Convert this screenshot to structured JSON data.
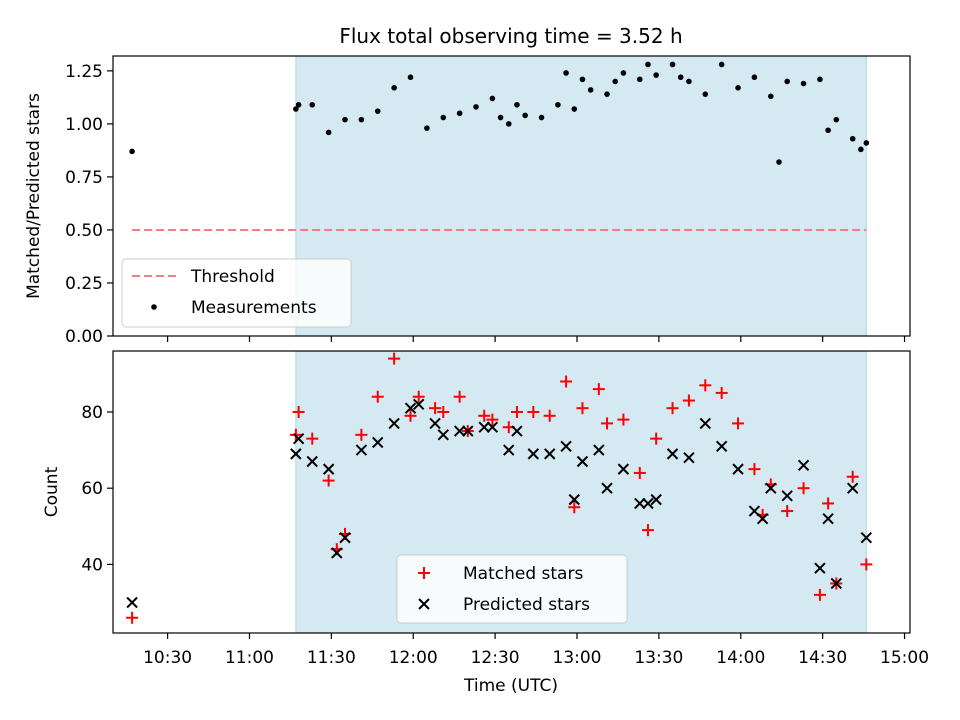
{
  "chart_data": [
    {
      "type": "scatter",
      "title": "Flux total observing time = 3.52 h",
      "xlabel": "",
      "ylabel": "Matched/Predicted stars",
      "ylim": [
        0.0,
        1.32
      ],
      "y_ticks": [
        "0.00",
        "0.25",
        "0.50",
        "0.75",
        "1.00",
        "1.25"
      ],
      "shaded_span": {
        "start": "11:17",
        "end": "14:46",
        "color": "#d4e9f1"
      },
      "threshold": {
        "name": "Threshold",
        "value": 0.5,
        "x_start": "10:17",
        "x_end": "14:46",
        "color": "#f08080"
      },
      "legend": {
        "placement": "lower-left",
        "entries": [
          "Threshold",
          "Measurements"
        ]
      },
      "series": [
        {
          "name": "Measurements",
          "marker": "dot",
          "color": "#000000",
          "x": [
            "10:17",
            "11:17",
            "11:18",
            "11:23",
            "11:29",
            "11:35",
            "11:41",
            "11:47",
            "11:53",
            "11:59",
            "12:05",
            "12:11",
            "12:17",
            "12:23",
            "12:29",
            "12:35",
            "12:41",
            "12:47",
            "12:53",
            "12:59",
            "13:05",
            "13:11",
            "13:17",
            "13:23",
            "13:29",
            "13:35",
            "13:41",
            "13:47",
            "13:53",
            "13:59",
            "14:05",
            "14:11",
            "14:17",
            "14:23",
            "14:29",
            "14:35",
            "14:41",
            "14:46",
            "13:02",
            "13:14",
            "13:26",
            "13:38",
            "12:38",
            "12:56",
            "14:14",
            "14:32",
            "14:44",
            "12:32"
          ],
          "y": [
            0.87,
            1.07,
            1.09,
            1.09,
            0.96,
            1.02,
            1.02,
            1.06,
            1.17,
            1.22,
            0.98,
            1.03,
            1.05,
            1.08,
            1.12,
            1.0,
            1.04,
            1.03,
            1.09,
            1.07,
            1.16,
            1.14,
            1.24,
            1.21,
            1.23,
            1.28,
            1.2,
            1.14,
            1.28,
            1.17,
            1.22,
            1.13,
            1.2,
            1.19,
            1.21,
            1.02,
            0.93,
            0.91,
            1.21,
            1.2,
            1.28,
            1.22,
            1.09,
            1.24,
            0.82,
            0.97,
            0.88,
            1.03
          ]
        }
      ]
    },
    {
      "type": "scatter",
      "title": "",
      "xlabel": "Time (UTC)",
      "ylabel": "Count",
      "ylim": [
        22,
        96
      ],
      "y_ticks": [
        "40",
        "60",
        "80"
      ],
      "xlim": [
        "10:10",
        "15:02"
      ],
      "x_ticks": [
        "10:30",
        "11:00",
        "11:30",
        "12:00",
        "12:30",
        "13:00",
        "13:30",
        "14:00",
        "14:30",
        "15:00"
      ],
      "shaded_span": {
        "start": "11:17",
        "end": "14:46",
        "color": "#d4e9f1"
      },
      "legend": {
        "placement": "lower-center",
        "entries": [
          "Matched stars",
          "Predicted stars"
        ]
      },
      "series": [
        {
          "name": "Matched stars",
          "marker": "plus",
          "color": "#ff0000",
          "x": [
            "10:17",
            "11:17",
            "11:18",
            "11:23",
            "11:29",
            "11:32",
            "11:35",
            "11:41",
            "11:47",
            "11:53",
            "11:59",
            "12:02",
            "12:08",
            "12:11",
            "12:17",
            "12:20",
            "12:26",
            "12:29",
            "12:35",
            "12:38",
            "12:44",
            "12:50",
            "12:56",
            "13:02",
            "13:08",
            "13:11",
            "13:17",
            "13:23",
            "13:29",
            "13:35",
            "13:41",
            "13:47",
            "13:53",
            "13:59",
            "14:05",
            "14:11",
            "14:17",
            "14:23",
            "14:29",
            "14:35",
            "14:41",
            "14:46",
            "12:59",
            "13:26",
            "14:08",
            "14:32"
          ],
          "y": [
            26,
            74,
            80,
            73,
            62,
            44,
            48,
            74,
            84,
            94,
            79,
            84,
            81,
            80,
            84,
            75,
            79,
            78,
            76,
            80,
            80,
            79,
            88,
            81,
            86,
            77,
            78,
            64,
            73,
            81,
            83,
            87,
            85,
            77,
            65,
            61,
            54,
            60,
            32,
            35,
            63,
            40,
            55,
            49,
            53,
            56
          ]
        },
        {
          "name": "Predicted stars",
          "marker": "x",
          "color": "#000000",
          "x": [
            "10:17",
            "11:17",
            "11:18",
            "11:23",
            "11:29",
            "11:32",
            "11:35",
            "11:41",
            "11:47",
            "11:53",
            "11:59",
            "12:02",
            "12:08",
            "12:11",
            "12:17",
            "12:20",
            "12:26",
            "12:29",
            "12:35",
            "12:38",
            "12:44",
            "12:50",
            "12:56",
            "13:02",
            "13:08",
            "13:11",
            "13:17",
            "13:23",
            "13:29",
            "13:35",
            "13:41",
            "13:47",
            "13:53",
            "13:59",
            "14:05",
            "14:11",
            "14:17",
            "14:23",
            "14:29",
            "14:35",
            "14:41",
            "14:46",
            "12:59",
            "13:26",
            "14:08",
            "14:32"
          ],
          "y": [
            30,
            69,
            73,
            67,
            65,
            43,
            47,
            70,
            72,
            77,
            81,
            82,
            77,
            74,
            75,
            75,
            76,
            76,
            70,
            75,
            69,
            69,
            71,
            67,
            70,
            60,
            65,
            56,
            57,
            69,
            68,
            77,
            71,
            65,
            54,
            60,
            58,
            66,
            39,
            35,
            60,
            47,
            57,
            56,
            52,
            52
          ]
        }
      ]
    }
  ]
}
